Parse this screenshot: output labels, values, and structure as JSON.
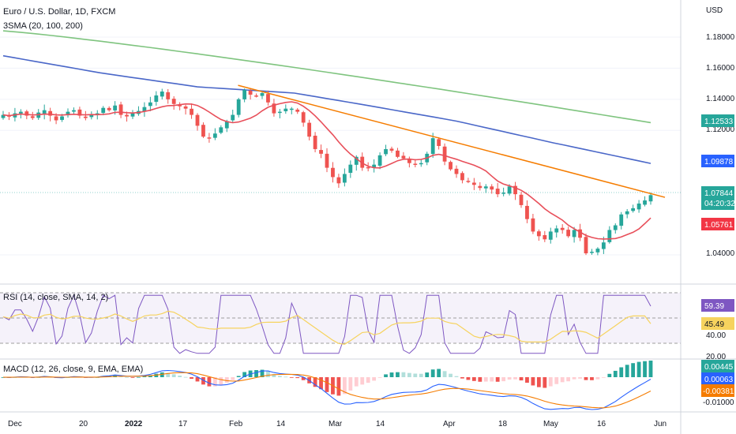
{
  "header": {
    "title": "Euro / U.S. Dollar, 1D, FXCM",
    "indicator": "3SMA (20, 100, 200)",
    "currency": "USD"
  },
  "colors": {
    "up": "#26a69a",
    "down": "#ef5350",
    "sma20": "#e84f5a",
    "sma100": "#4a67c8",
    "sma200": "#7fc47f",
    "trend": "#f57c00",
    "rsi": "#7e57c2",
    "rsi_ma": "#f6d35e",
    "macd": "#2962ff",
    "signal": "#f57c00",
    "hist_up": "#26a69a",
    "hist_up_light": "#b2dfdb",
    "hist_down": "#ef5350",
    "hist_down_light": "#ffcdd2"
  },
  "price_axis": {
    "ticks": [
      "1.18000",
      "1.16000",
      "1.14000",
      "1.12000",
      "1.04000"
    ],
    "tags": [
      {
        "label": "1.12533",
        "color": "#26a69a"
      },
      {
        "label": "1.09878",
        "color": "#2962ff"
      },
      {
        "label": "1.07844",
        "sub": "04:20:32",
        "color": "#26a69a"
      },
      {
        "label": "1.05761",
        "color": "#f23645"
      }
    ]
  },
  "rsi_panel": {
    "title": "RSI (14, close, SMA, 14, 2)",
    "ticks": [
      "40.00",
      "20.00"
    ],
    "tags": [
      {
        "label": "59.39",
        "color": "#7e57c2"
      },
      {
        "label": "45.49",
        "color": "#f6d35e"
      }
    ]
  },
  "macd_panel": {
    "title": "MACD (12, 26, close, 9, EMA, EMA)",
    "ticks": [
      "-0.01000"
    ],
    "tags": [
      {
        "label": "0.00445",
        "color": "#26a69a"
      },
      {
        "label": "0.00063",
        "color": "#2962ff"
      },
      {
        "label": "-0.00381",
        "color": "#f57c00"
      }
    ]
  },
  "time_axis": {
    "labels": [
      "Dec",
      "20",
      "2022",
      "17",
      "Feb",
      "14",
      "Mar",
      "14",
      "Apr",
      "18",
      "May",
      "16",
      "Jun"
    ]
  },
  "chart_data": [
    {
      "type": "candlestick",
      "name": "EUR/USD 1D",
      "ylim": [
        1.03,
        1.19
      ],
      "dates": [
        "2021-11-22",
        "2022-06-01"
      ],
      "close_path": [
        1.13,
        1.129,
        1.131,
        1.132,
        1.1295,
        1.128,
        1.1315,
        1.133,
        1.1295,
        1.1265,
        1.129,
        1.132,
        1.133,
        1.1295,
        1.128,
        1.13,
        1.131,
        1.1345,
        1.133,
        1.136,
        1.13,
        1.129,
        1.131,
        1.1325,
        1.135,
        1.138,
        1.1425,
        1.145,
        1.14,
        1.137,
        1.1355,
        1.134,
        1.13,
        1.123,
        1.116,
        1.115,
        1.118,
        1.122,
        1.126,
        1.13,
        1.14,
        1.146,
        1.143,
        1.142,
        1.144,
        1.138,
        1.131,
        1.132,
        1.134,
        1.134,
        1.132,
        1.125,
        1.116,
        1.108,
        1.105,
        1.096,
        1.09,
        1.086,
        1.092,
        1.098,
        1.103,
        1.096,
        1.096,
        1.098,
        1.104,
        1.108,
        1.107,
        1.103,
        1.102,
        1.099,
        1.098,
        1.099,
        1.105,
        1.115,
        1.11,
        1.1,
        1.095,
        1.092,
        1.088,
        1.087,
        1.085,
        1.083,
        1.084,
        1.082,
        1.079,
        1.08,
        1.084,
        1.079,
        1.072,
        1.063,
        1.055,
        1.052,
        1.05,
        1.055,
        1.057,
        1.056,
        1.052,
        1.056,
        1.051,
        1.041,
        1.042,
        1.044,
        1.048,
        1.056,
        1.059,
        1.066,
        1.068,
        1.07,
        1.073,
        1.075,
        1.0784
      ],
      "sma20": {
        "color": "#e84f5a",
        "last": 1.05761
      },
      "sma100": {
        "color": "#4a67c8",
        "last": 1.09878
      },
      "sma200": {
        "color": "#7fc47f",
        "last": 1.12533
      },
      "trendline": {
        "from": {
          "date": "2022-02-10",
          "value": 1.149
        },
        "to": {
          "date": "2022-06-01",
          "value": 1.077
        }
      }
    },
    {
      "type": "line",
      "name": "RSI (14, close, SMA, 14, 2)",
      "ylim": [
        20,
        80
      ],
      "bands": [
        70,
        50,
        30
      ],
      "rsi_last": 59.39,
      "rsi_ma_last": 45.49
    },
    {
      "type": "bar",
      "name": "MACD (12, 26, close, 9, EMA, EMA)",
      "ylim": [
        -0.012,
        0.006
      ],
      "macd_last": 0.00063,
      "signal_last": -0.00381,
      "hist_last": 0.00445
    }
  ]
}
